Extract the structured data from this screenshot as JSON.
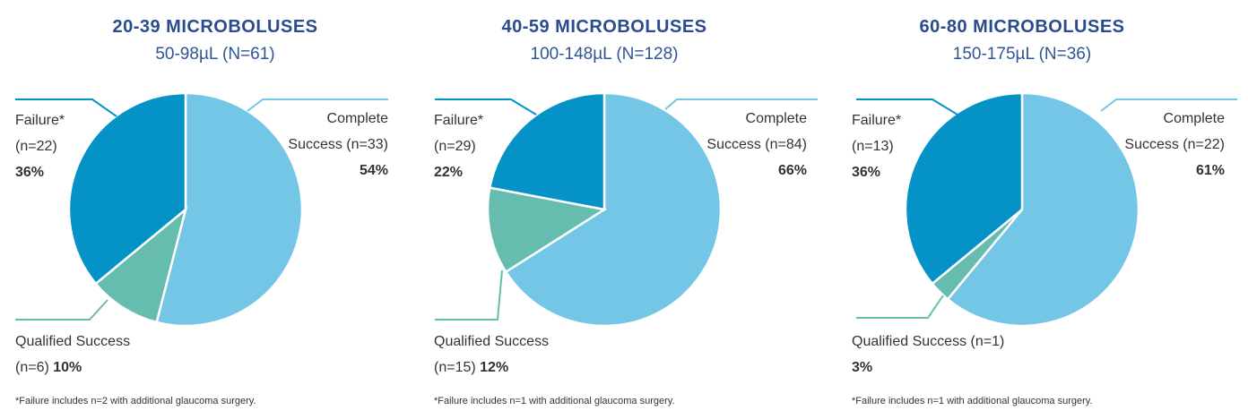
{
  "chart_data": [
    {
      "type": "pie",
      "title": "20-39 MICROBOLUSES",
      "subtitle": "50-98µL (N=61)",
      "categories": [
        "Complete Success (n=33)",
        "Qualified Success (n=6)",
        "Failure* (n=22)"
      ],
      "values": [
        54,
        10,
        36
      ],
      "value_labels": [
        "54%",
        "10%",
        "36%"
      ],
      "colors": [
        "#74c6e6",
        "#66bcae",
        "#0592c6"
      ],
      "footnote": "*Failure includes n=2 with additional glaucoma surgery."
    },
    {
      "type": "pie",
      "title": "40-59 MICROBOLUSES",
      "subtitle": "100-148µL (N=128)",
      "categories": [
        "Complete Success (n=84)",
        "Qualified Success (n=15)",
        "Failure* (n=29)"
      ],
      "values": [
        66,
        12,
        22
      ],
      "value_labels": [
        "66%",
        "12%",
        "22%"
      ],
      "colors": [
        "#74c6e6",
        "#66bcae",
        "#0592c6"
      ],
      "footnote": "*Failure includes n=1 with additional glaucoma surgery."
    },
    {
      "type": "pie",
      "title": "60-80 MICROBOLUSES",
      "subtitle": "150-175µL (N=36)",
      "categories": [
        "Complete Success (n=22)",
        "Qualified Success (n=1)",
        "Failure* (n=13)"
      ],
      "values": [
        61,
        3,
        36
      ],
      "value_labels": [
        "61%",
        "3%",
        "36%"
      ],
      "colors": [
        "#74c6e6",
        "#66bcae",
        "#0592c6"
      ],
      "footnote": "*Failure includes n=1 with additional glaucoma surgery."
    }
  ]
}
